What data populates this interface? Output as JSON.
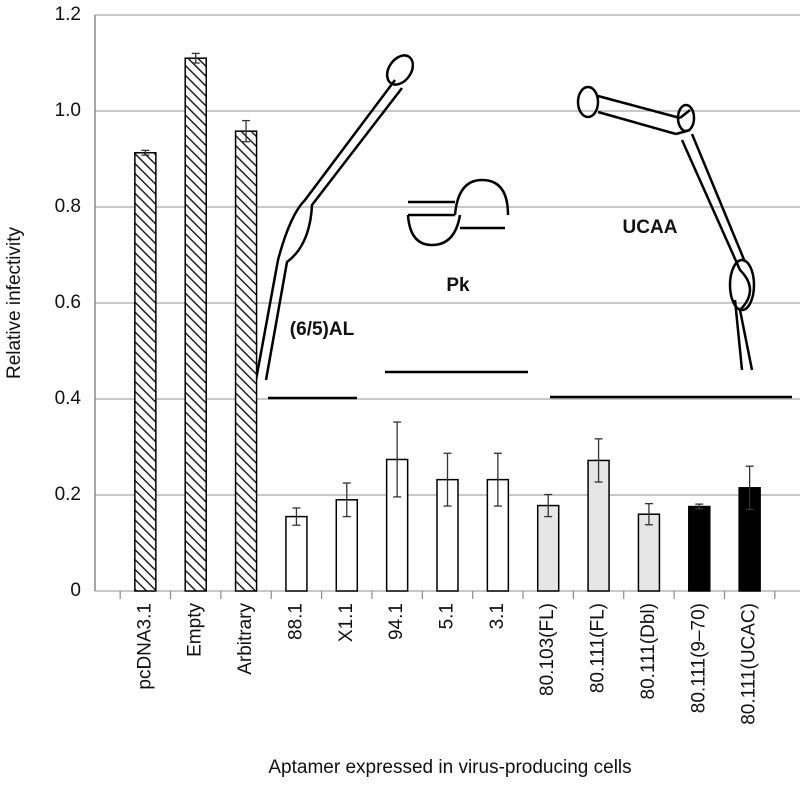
{
  "chart_data": {
    "type": "bar",
    "x_label": "Aptamer expressed in virus-producing cells",
    "y_label": "Relative infectivity",
    "categories": [
      "pcDNA3.1",
      "Empty",
      "Arbitrary",
      "88.1",
      "X1.1",
      "94.1",
      "5.1",
      "3.1",
      "80.103(FL)",
      "80.111(FL)",
      "80.111(Dbl)",
      "80.111(9–70)",
      "80.111(UCAC)"
    ],
    "values": [
      0.913,
      1.11,
      0.958,
      0.155,
      0.19,
      0.274,
      0.232,
      0.232,
      0.178,
      0.272,
      0.16,
      0.176,
      0.215
    ],
    "errors": [
      0.005,
      0.01,
      0.022,
      0.018,
      0.035,
      0.078,
      0.055,
      0.055,
      0.023,
      0.045,
      0.022,
      0.005,
      0.045
    ],
    "colors": [
      "#ffffff",
      "#ffffff",
      "#ffffff",
      "#ffffff",
      "#ffffff",
      "#ffffff",
      "#ffffff",
      "#ffffff",
      "#e6e6e6",
      "#e6e6e6",
      "#e6e6e6",
      "#000000",
      "#000000"
    ],
    "hatched": [
      true,
      true,
      true,
      false,
      false,
      false,
      false,
      false,
      false,
      false,
      false,
      false,
      false
    ],
    "ylim": [
      0,
      1.2
    ],
    "yticks": [
      0,
      0.2,
      0.4,
      0.6,
      0.8,
      {
        "value": 1,
        "label": "1.0"
      },
      1.2
    ],
    "grid": true,
    "annotations": [
      "(6/5)AL",
      "Pk",
      "UCAA"
    ]
  }
}
